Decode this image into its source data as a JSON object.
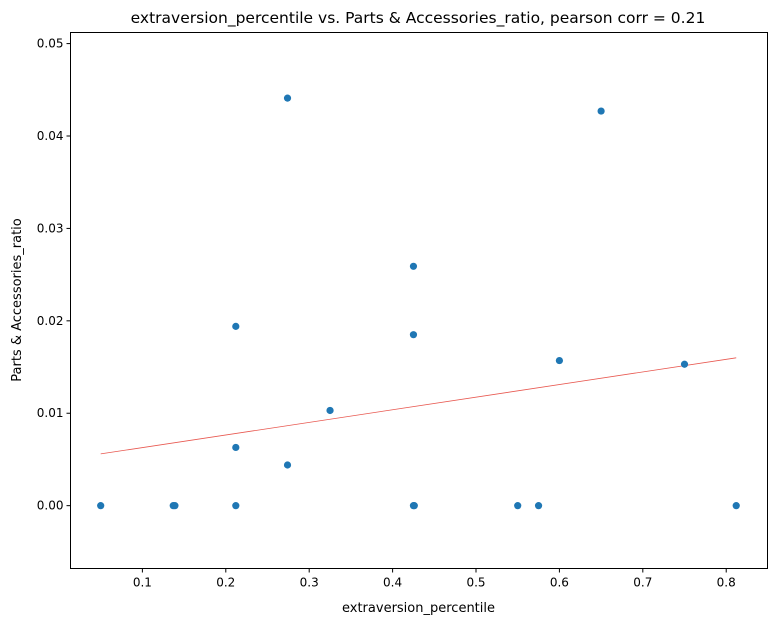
{
  "chart_data": {
    "type": "scatter",
    "title": "extraversion_percentile vs. Parts & Accessories_ratio, pearson corr = 0.21",
    "xlabel": "extraversion_percentile",
    "ylabel": "Parts & Accessories_ratio",
    "xlim": [
      0.0138,
      0.8495
    ],
    "ylim": [
      -0.0068,
      0.0512
    ],
    "xticks": [
      0.1,
      0.2,
      0.3,
      0.4,
      0.5,
      0.6,
      0.7,
      0.8
    ],
    "xtick_labels": [
      "0.1",
      "0.2",
      "0.3",
      "0.4",
      "0.5",
      "0.6",
      "0.7",
      "0.8"
    ],
    "yticks": [
      0.0,
      0.01,
      0.02,
      0.03,
      0.04,
      0.05
    ],
    "ytick_labels": [
      "0.00",
      "0.01",
      "0.02",
      "0.03",
      "0.04",
      "0.05"
    ],
    "grid": false,
    "point_color": "#1f77b4",
    "trend_color": "#e8574f",
    "points": [
      {
        "x": 0.05,
        "y": 0.0
      },
      {
        "x": 0.137,
        "y": 0.0
      },
      {
        "x": 0.139,
        "y": 0.0
      },
      {
        "x": 0.212,
        "y": 0.0
      },
      {
        "x": 0.212,
        "y": 0.0063
      },
      {
        "x": 0.212,
        "y": 0.0194
      },
      {
        "x": 0.274,
        "y": 0.0044
      },
      {
        "x": 0.274,
        "y": 0.0441
      },
      {
        "x": 0.325,
        "y": 0.0103
      },
      {
        "x": 0.425,
        "y": 0.0
      },
      {
        "x": 0.426,
        "y": 0.0
      },
      {
        "x": 0.425,
        "y": 0.0185
      },
      {
        "x": 0.425,
        "y": 0.0259
      },
      {
        "x": 0.55,
        "y": 0.0
      },
      {
        "x": 0.575,
        "y": 0.0
      },
      {
        "x": 0.6,
        "y": 0.0157
      },
      {
        "x": 0.65,
        "y": 0.0427
      },
      {
        "x": 0.75,
        "y": 0.0153
      },
      {
        "x": 0.812,
        "y": 0.0
      }
    ],
    "trend_line": [
      {
        "x": 0.05,
        "y": 0.0056
      },
      {
        "x": 0.812,
        "y": 0.016
      }
    ]
  }
}
